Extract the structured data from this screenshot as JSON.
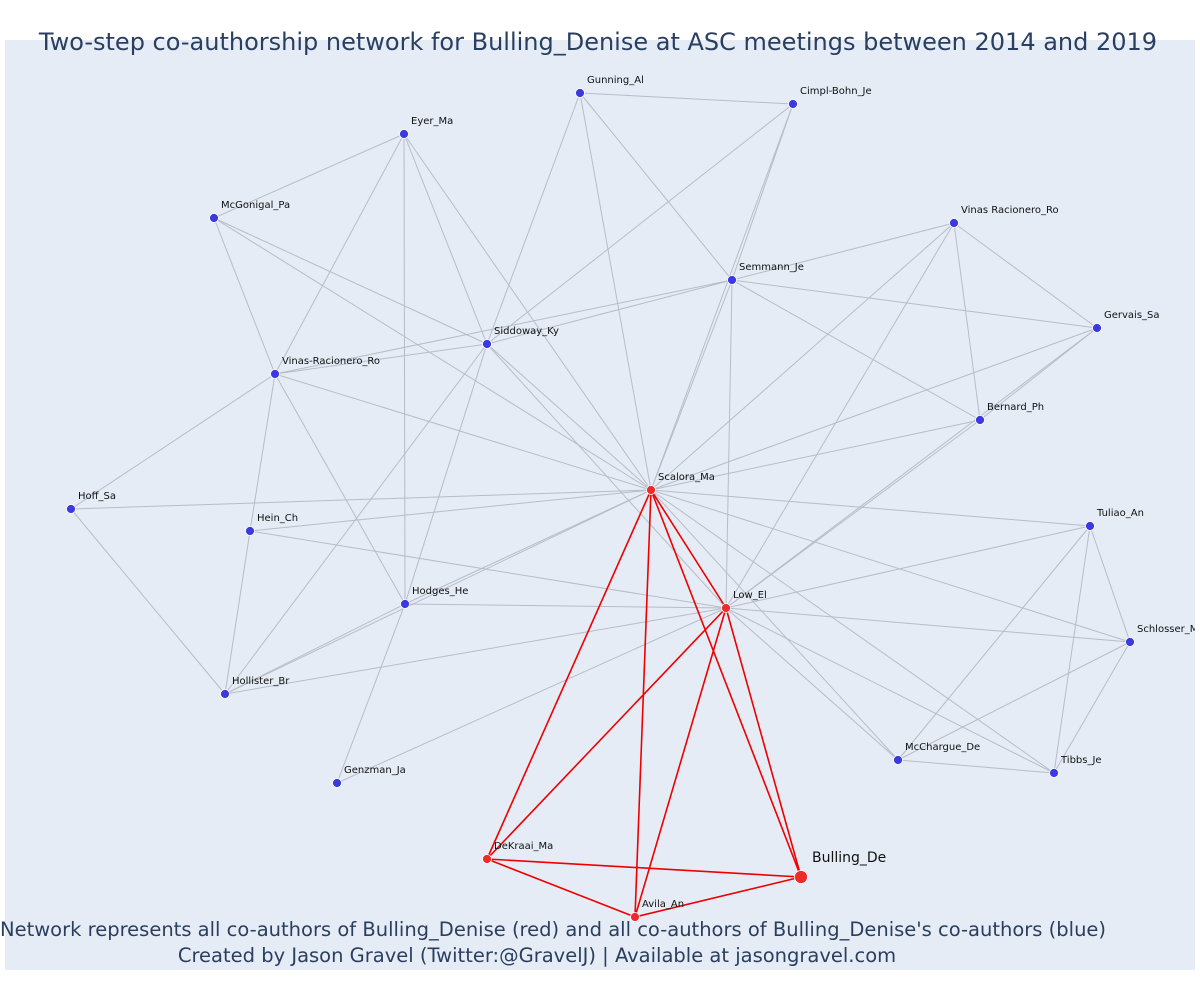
{
  "title": "Two-step co-authorship network for Bulling_Denise at ASC meetings between 2014 and 2019",
  "caption": {
    "line1": "Network represents all co-authors of Bulling_Denise (red) and all co-authors of Bulling_Denise's co-authors (blue)",
    "line2": "Created by Jason Gravel (Twitter:@GravelJ) | Available at jasongravel.com"
  },
  "colors": {
    "plot_background": "#e5ecf6",
    "title_text": "#2a3f5f",
    "edge_secondary": "#b8bcc8",
    "edge_primary": "#ee0000",
    "node_primary": "#ee2a2a",
    "node_secondary": "#3a3ae0"
  },
  "chart_data": {
    "type": "network",
    "focal_node": "Bulling_De",
    "nodes": [
      {
        "id": "Gunning_Al",
        "group": "secondary"
      },
      {
        "id": "Cimpl-Bohn_Je",
        "group": "secondary"
      },
      {
        "id": "Eyer_Ma",
        "group": "secondary"
      },
      {
        "id": "McGonigal_Pa",
        "group": "secondary"
      },
      {
        "id": "Vinas Racionero_Ro",
        "group": "secondary"
      },
      {
        "id": "Semmann_Je",
        "group": "secondary"
      },
      {
        "id": "Gervais_Sa",
        "group": "secondary"
      },
      {
        "id": "Siddoway_Ky",
        "group": "secondary"
      },
      {
        "id": "Vinas-Racionero_Ro",
        "group": "secondary"
      },
      {
        "id": "Bernard_Ph",
        "group": "secondary"
      },
      {
        "id": "Scalora_Ma",
        "group": "primary"
      },
      {
        "id": "Hoff_Sa",
        "group": "secondary"
      },
      {
        "id": "Tuliao_An",
        "group": "secondary"
      },
      {
        "id": "Hein_Ch",
        "group": "secondary"
      },
      {
        "id": "Hodges_He",
        "group": "secondary"
      },
      {
        "id": "Low_El",
        "group": "primary"
      },
      {
        "id": "Schlosser_Mj",
        "group": "secondary"
      },
      {
        "id": "Hollister_Br",
        "group": "secondary"
      },
      {
        "id": "McChargue_De",
        "group": "secondary"
      },
      {
        "id": "Tibbs_Je",
        "group": "secondary"
      },
      {
        "id": "Genzman_Ja",
        "group": "secondary"
      },
      {
        "id": "DeKraai_Ma",
        "group": "primary"
      },
      {
        "id": "Bulling_De",
        "group": "focal"
      },
      {
        "id": "Avila_An",
        "group": "primary"
      }
    ],
    "edges_primary": [
      [
        "Bulling_De",
        "Scalora_Ma"
      ],
      [
        "Bulling_De",
        "Low_El"
      ],
      [
        "Bulling_De",
        "DeKraai_Ma"
      ],
      [
        "Bulling_De",
        "Avila_An"
      ],
      [
        "Scalora_Ma",
        "Low_El"
      ],
      [
        "Scalora_Ma",
        "DeKraai_Ma"
      ],
      [
        "Scalora_Ma",
        "Avila_An"
      ],
      [
        "Low_El",
        "DeKraai_Ma"
      ],
      [
        "Low_El",
        "Avila_An"
      ],
      [
        "DeKraai_Ma",
        "Avila_An"
      ]
    ],
    "edges_secondary": [
      [
        "Gunning_Al",
        "Cimpl-Bohn_Je"
      ],
      [
        "Gunning_Al",
        "Semmann_Je"
      ],
      [
        "Gunning_Al",
        "Siddoway_Ky"
      ],
      [
        "Gunning_Al",
        "Scalora_Ma"
      ],
      [
        "Cimpl-Bohn_Je",
        "Siddoway_Ky"
      ],
      [
        "Cimpl-Bohn_Je",
        "Semmann_Je"
      ],
      [
        "Cimpl-Bohn_Je",
        "Scalora_Ma"
      ],
      [
        "Eyer_Ma",
        "McGonigal_Pa"
      ],
      [
        "Eyer_Ma",
        "Vinas-Racionero_Ro"
      ],
      [
        "Eyer_Ma",
        "Siddoway_Ky"
      ],
      [
        "Eyer_Ma",
        "Scalora_Ma"
      ],
      [
        "Eyer_Ma",
        "Hodges_He"
      ],
      [
        "McGonigal_Pa",
        "Vinas-Racionero_Ro"
      ],
      [
        "McGonigal_Pa",
        "Siddoway_Ky"
      ],
      [
        "McGonigal_Pa",
        "Scalora_Ma"
      ],
      [
        "Vinas Racionero_Ro",
        "Semmann_Je"
      ],
      [
        "Vinas Racionero_Ro",
        "Gervais_Sa"
      ],
      [
        "Vinas Racionero_Ro",
        "Bernard_Ph"
      ],
      [
        "Vinas Racionero_Ro",
        "Scalora_Ma"
      ],
      [
        "Vinas Racionero_Ro",
        "Low_El"
      ],
      [
        "Semmann_Je",
        "Gervais_Sa"
      ],
      [
        "Semmann_Je",
        "Siddoway_Ky"
      ],
      [
        "Semmann_Je",
        "Vinas-Racionero_Ro"
      ],
      [
        "Semmann_Je",
        "Bernard_Ph"
      ],
      [
        "Semmann_Je",
        "Scalora_Ma"
      ],
      [
        "Semmann_Je",
        "Low_El"
      ],
      [
        "Gervais_Sa",
        "Bernard_Ph"
      ],
      [
        "Gervais_Sa",
        "Scalora_Ma"
      ],
      [
        "Gervais_Sa",
        "Low_El"
      ],
      [
        "Siddoway_Ky",
        "Vinas-Racionero_Ro"
      ],
      [
        "Siddoway_Ky",
        "Scalora_Ma"
      ],
      [
        "Siddoway_Ky",
        "Low_El"
      ],
      [
        "Siddoway_Ky",
        "Hodges_He"
      ],
      [
        "Siddoway_Ky",
        "Hollister_Br"
      ],
      [
        "Vinas-Racionero_Ro",
        "Scalora_Ma"
      ],
      [
        "Vinas-Racionero_Ro",
        "Hoff_Sa"
      ],
      [
        "Vinas-Racionero_Ro",
        "Hein_Ch"
      ],
      [
        "Vinas-Racionero_Ro",
        "Hodges_He"
      ],
      [
        "Bernard_Ph",
        "Scalora_Ma"
      ],
      [
        "Bernard_Ph",
        "Low_El"
      ],
      [
        "Scalora_Ma",
        "Hoff_Sa"
      ],
      [
        "Scalora_Ma",
        "Hein_Ch"
      ],
      [
        "Scalora_Ma",
        "Hodges_He"
      ],
      [
        "Scalora_Ma",
        "Hollister_Br"
      ],
      [
        "Scalora_Ma",
        "Tuliao_An"
      ],
      [
        "Scalora_Ma",
        "Schlosser_Mj"
      ],
      [
        "Scalora_Ma",
        "McChargue_De"
      ],
      [
        "Scalora_Ma",
        "Tibbs_Je"
      ],
      [
        "Hoff_Sa",
        "Hollister_Br"
      ],
      [
        "Hein_Ch",
        "Hollister_Br"
      ],
      [
        "Hein_Ch",
        "Low_El"
      ],
      [
        "Hodges_He",
        "Low_El"
      ],
      [
        "Hodges_He",
        "Hollister_Br"
      ],
      [
        "Hodges_He",
        "Genzman_Ja"
      ],
      [
        "Low_El",
        "Hollister_Br"
      ],
      [
        "Low_El",
        "Genzman_Ja"
      ],
      [
        "Low_El",
        "Tuliao_An"
      ],
      [
        "Low_El",
        "Schlosser_Mj"
      ],
      [
        "Low_El",
        "McChargue_De"
      ],
      [
        "Low_El",
        "Tibbs_Je"
      ],
      [
        "Tuliao_An",
        "Schlosser_Mj"
      ],
      [
        "Tuliao_An",
        "McChargue_De"
      ],
      [
        "Tuliao_An",
        "Tibbs_Je"
      ],
      [
        "Schlosser_Mj",
        "McChargue_De"
      ],
      [
        "Schlosser_Mj",
        "Tibbs_Je"
      ],
      [
        "McChargue_De",
        "Tibbs_Je"
      ]
    ]
  }
}
